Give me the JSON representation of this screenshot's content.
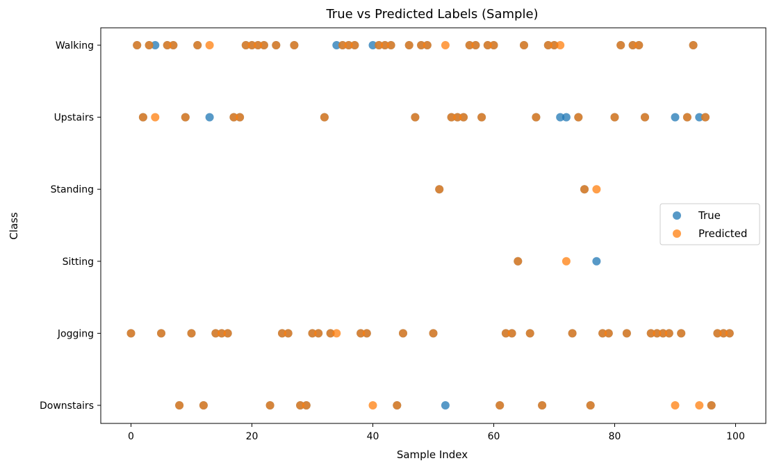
{
  "chart_data": {
    "type": "scatter",
    "title": "True vs Predicted Labels (Sample)",
    "xlabel": "Sample Index",
    "ylabel": "Class",
    "xlim": [
      -5,
      105
    ],
    "xticks": [
      0,
      20,
      40,
      60,
      80,
      100
    ],
    "categories": [
      "Downstairs",
      "Jogging",
      "Sitting",
      "Standing",
      "Upstairs",
      "Walking"
    ],
    "grid": false,
    "legend_position": "center-right",
    "series": [
      {
        "name": "True",
        "color": "#1f77b4",
        "points": [
          [
            0,
            "Jogging"
          ],
          [
            1,
            "Walking"
          ],
          [
            2,
            "Upstairs"
          ],
          [
            3,
            "Walking"
          ],
          [
            4,
            "Walking"
          ],
          [
            5,
            "Jogging"
          ],
          [
            6,
            "Walking"
          ],
          [
            7,
            "Walking"
          ],
          [
            8,
            "Downstairs"
          ],
          [
            9,
            "Upstairs"
          ],
          [
            10,
            "Jogging"
          ],
          [
            11,
            "Walking"
          ],
          [
            12,
            "Downstairs"
          ],
          [
            13,
            "Upstairs"
          ],
          [
            14,
            "Jogging"
          ],
          [
            15,
            "Jogging"
          ],
          [
            16,
            "Jogging"
          ],
          [
            17,
            "Upstairs"
          ],
          [
            18,
            "Upstairs"
          ],
          [
            19,
            "Walking"
          ],
          [
            20,
            "Walking"
          ],
          [
            21,
            "Walking"
          ],
          [
            22,
            "Walking"
          ],
          [
            23,
            "Downstairs"
          ],
          [
            24,
            "Walking"
          ],
          [
            25,
            "Jogging"
          ],
          [
            26,
            "Jogging"
          ],
          [
            27,
            "Walking"
          ],
          [
            28,
            "Downstairs"
          ],
          [
            29,
            "Downstairs"
          ],
          [
            30,
            "Jogging"
          ],
          [
            31,
            "Jogging"
          ],
          [
            32,
            "Upstairs"
          ],
          [
            33,
            "Jogging"
          ],
          [
            34,
            "Walking"
          ],
          [
            35,
            "Walking"
          ],
          [
            36,
            "Walking"
          ],
          [
            37,
            "Walking"
          ],
          [
            38,
            "Jogging"
          ],
          [
            39,
            "Jogging"
          ],
          [
            40,
            "Walking"
          ],
          [
            41,
            "Walking"
          ],
          [
            42,
            "Walking"
          ],
          [
            43,
            "Walking"
          ],
          [
            44,
            "Downstairs"
          ],
          [
            45,
            "Jogging"
          ],
          [
            46,
            "Walking"
          ],
          [
            47,
            "Upstairs"
          ],
          [
            48,
            "Walking"
          ],
          [
            49,
            "Walking"
          ],
          [
            50,
            "Jogging"
          ],
          [
            51,
            "Standing"
          ],
          [
            52,
            "Downstairs"
          ],
          [
            53,
            "Upstairs"
          ],
          [
            54,
            "Upstairs"
          ],
          [
            55,
            "Upstairs"
          ],
          [
            56,
            "Walking"
          ],
          [
            57,
            "Walking"
          ],
          [
            58,
            "Upstairs"
          ],
          [
            59,
            "Walking"
          ],
          [
            60,
            "Walking"
          ],
          [
            61,
            "Downstairs"
          ],
          [
            62,
            "Jogging"
          ],
          [
            63,
            "Jogging"
          ],
          [
            64,
            "Sitting"
          ],
          [
            65,
            "Walking"
          ],
          [
            66,
            "Jogging"
          ],
          [
            67,
            "Upstairs"
          ],
          [
            68,
            "Downstairs"
          ],
          [
            69,
            "Walking"
          ],
          [
            70,
            "Walking"
          ],
          [
            71,
            "Upstairs"
          ],
          [
            72,
            "Upstairs"
          ],
          [
            73,
            "Jogging"
          ],
          [
            74,
            "Upstairs"
          ],
          [
            75,
            "Standing"
          ],
          [
            76,
            "Downstairs"
          ],
          [
            77,
            "Sitting"
          ],
          [
            78,
            "Jogging"
          ],
          [
            79,
            "Jogging"
          ],
          [
            80,
            "Upstairs"
          ],
          [
            81,
            "Walking"
          ],
          [
            82,
            "Jogging"
          ],
          [
            83,
            "Walking"
          ],
          [
            84,
            "Walking"
          ],
          [
            85,
            "Upstairs"
          ],
          [
            86,
            "Jogging"
          ],
          [
            87,
            "Jogging"
          ],
          [
            88,
            "Jogging"
          ],
          [
            89,
            "Jogging"
          ],
          [
            90,
            "Upstairs"
          ],
          [
            91,
            "Jogging"
          ],
          [
            92,
            "Upstairs"
          ],
          [
            93,
            "Walking"
          ],
          [
            94,
            "Upstairs"
          ],
          [
            95,
            "Upstairs"
          ],
          [
            96,
            "Downstairs"
          ],
          [
            97,
            "Jogging"
          ],
          [
            98,
            "Jogging"
          ],
          [
            99,
            "Jogging"
          ]
        ]
      },
      {
        "name": "Predicted",
        "color": "#ff7f0e",
        "points": [
          [
            0,
            "Jogging"
          ],
          [
            1,
            "Walking"
          ],
          [
            2,
            "Upstairs"
          ],
          [
            3,
            "Walking"
          ],
          [
            4,
            "Upstairs"
          ],
          [
            5,
            "Jogging"
          ],
          [
            6,
            "Walking"
          ],
          [
            7,
            "Walking"
          ],
          [
            8,
            "Downstairs"
          ],
          [
            9,
            "Upstairs"
          ],
          [
            10,
            "Jogging"
          ],
          [
            11,
            "Walking"
          ],
          [
            12,
            "Downstairs"
          ],
          [
            13,
            "Walking"
          ],
          [
            14,
            "Jogging"
          ],
          [
            15,
            "Jogging"
          ],
          [
            16,
            "Jogging"
          ],
          [
            17,
            "Upstairs"
          ],
          [
            18,
            "Upstairs"
          ],
          [
            19,
            "Walking"
          ],
          [
            20,
            "Walking"
          ],
          [
            21,
            "Walking"
          ],
          [
            22,
            "Walking"
          ],
          [
            23,
            "Downstairs"
          ],
          [
            24,
            "Walking"
          ],
          [
            25,
            "Jogging"
          ],
          [
            26,
            "Jogging"
          ],
          [
            27,
            "Walking"
          ],
          [
            28,
            "Downstairs"
          ],
          [
            29,
            "Downstairs"
          ],
          [
            30,
            "Jogging"
          ],
          [
            31,
            "Jogging"
          ],
          [
            32,
            "Upstairs"
          ],
          [
            33,
            "Jogging"
          ],
          [
            34,
            "Jogging"
          ],
          [
            35,
            "Walking"
          ],
          [
            36,
            "Walking"
          ],
          [
            37,
            "Walking"
          ],
          [
            38,
            "Jogging"
          ],
          [
            39,
            "Jogging"
          ],
          [
            40,
            "Downstairs"
          ],
          [
            41,
            "Walking"
          ],
          [
            42,
            "Walking"
          ],
          [
            43,
            "Walking"
          ],
          [
            44,
            "Downstairs"
          ],
          [
            45,
            "Jogging"
          ],
          [
            46,
            "Walking"
          ],
          [
            47,
            "Upstairs"
          ],
          [
            48,
            "Walking"
          ],
          [
            49,
            "Walking"
          ],
          [
            50,
            "Jogging"
          ],
          [
            51,
            "Standing"
          ],
          [
            52,
            "Walking"
          ],
          [
            53,
            "Upstairs"
          ],
          [
            54,
            "Upstairs"
          ],
          [
            55,
            "Upstairs"
          ],
          [
            56,
            "Walking"
          ],
          [
            57,
            "Walking"
          ],
          [
            58,
            "Upstairs"
          ],
          [
            59,
            "Walking"
          ],
          [
            60,
            "Walking"
          ],
          [
            61,
            "Downstairs"
          ],
          [
            62,
            "Jogging"
          ],
          [
            63,
            "Jogging"
          ],
          [
            64,
            "Sitting"
          ],
          [
            65,
            "Walking"
          ],
          [
            66,
            "Jogging"
          ],
          [
            67,
            "Upstairs"
          ],
          [
            68,
            "Downstairs"
          ],
          [
            69,
            "Walking"
          ],
          [
            70,
            "Walking"
          ],
          [
            71,
            "Walking"
          ],
          [
            72,
            "Sitting"
          ],
          [
            73,
            "Jogging"
          ],
          [
            74,
            "Upstairs"
          ],
          [
            75,
            "Standing"
          ],
          [
            76,
            "Downstairs"
          ],
          [
            77,
            "Standing"
          ],
          [
            78,
            "Jogging"
          ],
          [
            79,
            "Jogging"
          ],
          [
            80,
            "Upstairs"
          ],
          [
            81,
            "Walking"
          ],
          [
            82,
            "Jogging"
          ],
          [
            83,
            "Walking"
          ],
          [
            84,
            "Walking"
          ],
          [
            85,
            "Upstairs"
          ],
          [
            86,
            "Jogging"
          ],
          [
            87,
            "Jogging"
          ],
          [
            88,
            "Jogging"
          ],
          [
            89,
            "Jogging"
          ],
          [
            90,
            "Downstairs"
          ],
          [
            91,
            "Jogging"
          ],
          [
            92,
            "Upstairs"
          ],
          [
            93,
            "Walking"
          ],
          [
            94,
            "Downstairs"
          ],
          [
            95,
            "Upstairs"
          ],
          [
            96,
            "Downstairs"
          ],
          [
            97,
            "Jogging"
          ],
          [
            98,
            "Jogging"
          ],
          [
            99,
            "Jogging"
          ]
        ]
      }
    ]
  }
}
